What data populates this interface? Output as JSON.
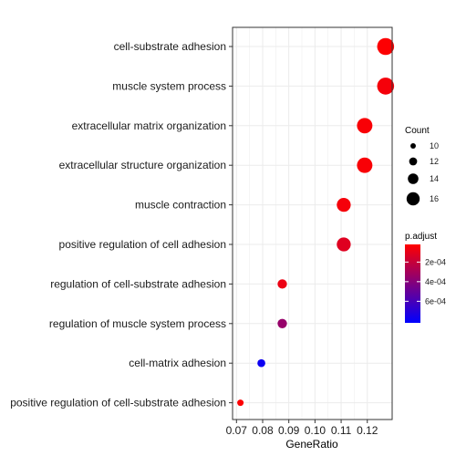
{
  "chart_data": {
    "type": "scatter",
    "title": "",
    "xlabel": "GeneRatio",
    "ylabel": "",
    "xlim": [
      0.0685,
      0.1295
    ],
    "x_ticks": [
      0.07,
      0.08,
      0.09,
      0.1,
      0.11,
      0.12
    ],
    "x_tick_labels": [
      "0.07",
      "0.08",
      "0.09",
      "0.10",
      "0.11",
      "0.12"
    ],
    "grid": true,
    "categories": [
      "cell-substrate adhesion",
      "muscle system process",
      "extracellular matrix organization",
      "extracellular structure organization",
      "muscle contraction",
      "positive regulation of cell adhesion",
      "regulation of cell-substrate adhesion",
      "regulation of muscle system process",
      "cell-matrix adhesion",
      "positive regulation of cell-substrate adhesion"
    ],
    "points": [
      {
        "category": "cell-substrate adhesion",
        "gene_ratio": 0.127,
        "count": 17,
        "p_adjust": 2.5e-05
      },
      {
        "category": "muscle system process",
        "gene_ratio": 0.127,
        "count": 17,
        "p_adjust": 5e-05
      },
      {
        "category": "extracellular matrix organization",
        "gene_ratio": 0.119,
        "count": 16,
        "p_adjust": 4e-05
      },
      {
        "category": "extracellular structure organization",
        "gene_ratio": 0.119,
        "count": 16,
        "p_adjust": 4e-05
      },
      {
        "category": "muscle contraction",
        "gene_ratio": 0.111,
        "count": 15,
        "p_adjust": 5e-05
      },
      {
        "category": "positive regulation of cell adhesion",
        "gene_ratio": 0.111,
        "count": 15,
        "p_adjust": 0.00012
      },
      {
        "category": "regulation of cell-substrate adhesion",
        "gene_ratio": 0.0875,
        "count": 12,
        "p_adjust": 8e-05
      },
      {
        "category": "regulation of muscle system process",
        "gene_ratio": 0.0875,
        "count": 12,
        "p_adjust": 0.00035
      },
      {
        "category": "cell-matrix adhesion",
        "gene_ratio": 0.0795,
        "count": 11,
        "p_adjust": 0.00078
      },
      {
        "category": "positive regulation of cell-substrate adhesion",
        "gene_ratio": 0.0715,
        "count": 10,
        "p_adjust": 3e-05
      }
    ],
    "legend": {
      "placement": "right",
      "size_title": "Count",
      "size_values": [
        10,
        12,
        14,
        16
      ],
      "size_labels": [
        "10",
        "12",
        "14",
        "16"
      ],
      "color_title": "p.adjust",
      "color_range": [
        2e-05,
        0.00082
      ],
      "color_ticks": [
        0.0002,
        0.0004,
        0.0006
      ],
      "color_tick_labels": [
        "2e-04",
        "4e-04",
        "6e-04"
      ],
      "color_low": "#ff0000",
      "color_high": "#0000ff"
    },
    "colors": {
      "grid": "#ebebeb",
      "panel_border": "#333333"
    }
  }
}
